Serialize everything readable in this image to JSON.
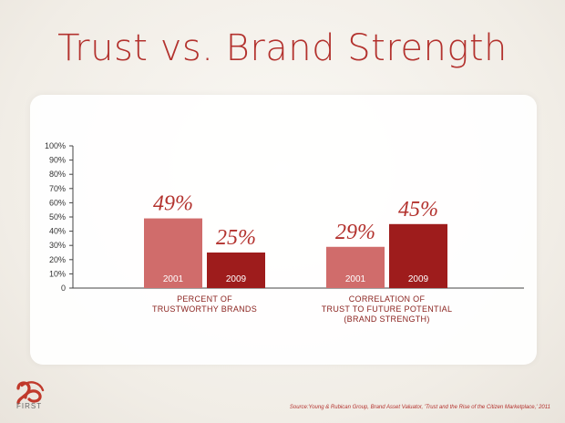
{
  "title": "Trust vs. Brand Strength",
  "colors": {
    "accent": "#b3322e",
    "bar_2001": "#d06c6b",
    "bar_2009": "#9e1c1c"
  },
  "chart_data": {
    "type": "bar",
    "title": "Trust vs. Brand Strength",
    "ylim": [
      0,
      100
    ],
    "y_ticks": [
      "100%",
      "90%",
      "80%",
      "70%",
      "60%",
      "50%",
      "40%",
      "30%",
      "20%",
      "10%",
      "0"
    ],
    "groups": [
      {
        "label_lines": [
          "PERCENT OF",
          "TRUSTWORTHY BRANDS"
        ],
        "bars": [
          {
            "year": "2001",
            "value": 49,
            "label": "49%"
          },
          {
            "year": "2009",
            "value": 25,
            "label": "25%"
          }
        ]
      },
      {
        "label_lines": [
          "CORRELATION OF",
          "TRUST TO FUTURE POTENTIAL",
          "(BRAND STRENGTH)"
        ],
        "bars": [
          {
            "year": "2001",
            "value": 29,
            "label": "29%"
          },
          {
            "year": "2009",
            "value": 45,
            "label": "45%"
          }
        ]
      }
    ]
  },
  "logo": {
    "icon": "we-first-logo-icon",
    "text": "FIRST"
  },
  "source": "Source:Young & Rubican Group, Brand Asset Valuator, 'Trust and the Rise of the Citizen Marketplace,' 2011"
}
